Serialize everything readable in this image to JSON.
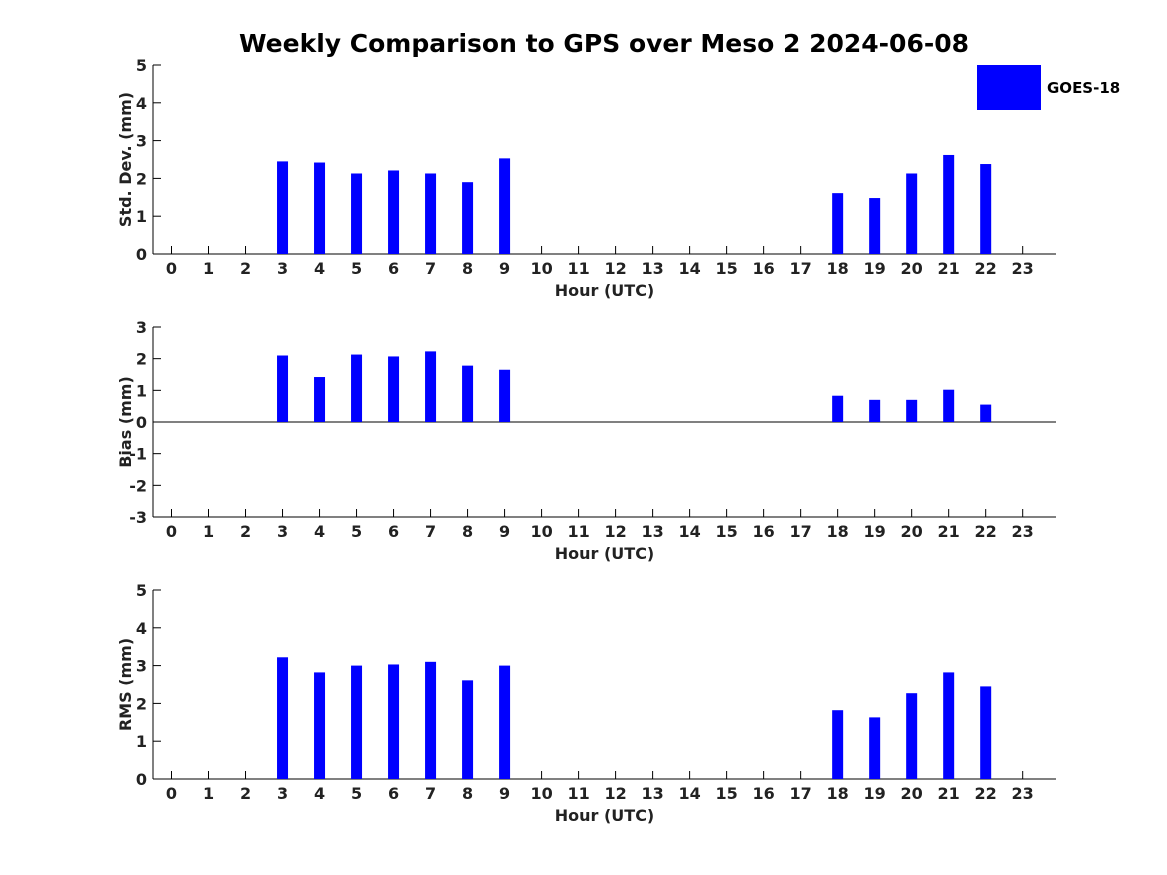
{
  "chart_data": {
    "title": "Weekly Comparison to GPS over Meso 2 2024-06-08",
    "legend": {
      "label": "GOES-18",
      "placement": "top-right",
      "color": "#0000ff"
    },
    "series_color": "#0000ff",
    "hours": [
      0,
      1,
      2,
      3,
      4,
      5,
      6,
      7,
      8,
      9,
      10,
      11,
      12,
      13,
      14,
      15,
      16,
      17,
      18,
      19,
      20,
      21,
      22,
      23
    ],
    "panels": [
      {
        "type": "bar",
        "xlabel": "Hour (UTC)",
        "ylabel": "Std. Dev. (mm)",
        "ylim": [
          0,
          5
        ],
        "yticks": [
          0,
          1,
          2,
          3,
          4,
          5
        ],
        "values": [
          null,
          null,
          null,
          2.45,
          2.42,
          2.13,
          2.21,
          2.13,
          1.9,
          2.53,
          null,
          null,
          null,
          null,
          null,
          null,
          null,
          null,
          1.61,
          1.48,
          2.13,
          2.62,
          2.38,
          null
        ]
      },
      {
        "type": "bar",
        "xlabel": "Hour (UTC)",
        "ylabel": "Bias (mm)",
        "ylim": [
          -3,
          3
        ],
        "yticks": [
          -3,
          -2,
          -1,
          0,
          1,
          2,
          3
        ],
        "values": [
          null,
          null,
          null,
          2.1,
          1.42,
          2.13,
          2.07,
          2.23,
          1.78,
          1.65,
          null,
          null,
          null,
          null,
          null,
          null,
          null,
          null,
          0.83,
          0.7,
          0.7,
          1.02,
          0.55,
          null
        ]
      },
      {
        "type": "bar",
        "xlabel": "Hour (UTC)",
        "ylabel": "RMS (mm)",
        "ylim": [
          0,
          5
        ],
        "yticks": [
          0,
          1,
          2,
          3,
          4,
          5
        ],
        "values": [
          null,
          null,
          null,
          3.22,
          2.82,
          3.0,
          3.03,
          3.1,
          2.61,
          3.0,
          null,
          null,
          null,
          null,
          null,
          null,
          null,
          null,
          1.82,
          1.63,
          2.27,
          2.82,
          2.45,
          null
        ]
      }
    ]
  }
}
